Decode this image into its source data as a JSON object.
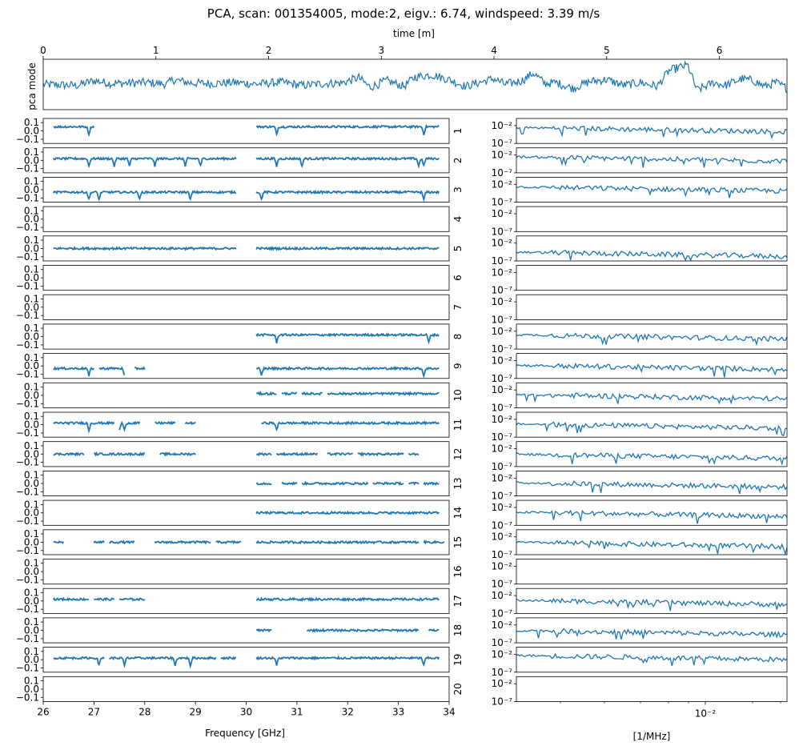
{
  "title": "PCA, scan: 001354005, mode:2, eigv.: 6.74, windspeed: 3.39 m/s",
  "colors": {
    "series": "#1f77b4",
    "axes": "#000000",
    "background": "#ffffff"
  },
  "chart_data": [
    {
      "type": "line",
      "panel": "time-series",
      "xlabel": "time [m]",
      "ylabel": "pca mode",
      "xlim": [
        0,
        6.6
      ],
      "xticks": [
        0,
        1,
        2,
        3,
        4,
        5,
        6
      ],
      "x_axis_position": "top",
      "yticks": [],
      "series": [
        {
          "x": [
            0.0,
            0.3,
            0.45,
            0.6,
            0.9,
            1.1,
            1.15,
            1.3,
            1.5,
            1.7,
            1.9,
            2.1,
            2.3,
            2.5,
            2.65,
            2.8,
            2.9,
            3.05,
            3.2,
            3.3,
            3.45,
            3.6,
            3.75,
            3.9,
            4.0,
            4.1,
            4.25,
            4.35,
            4.45,
            4.55,
            4.7,
            4.85,
            5.0,
            5.15,
            5.3,
            5.45,
            5.55,
            5.65,
            5.72,
            5.8,
            5.95,
            6.05,
            6.2,
            6.3,
            6.4,
            6.5,
            6.6
          ],
          "y": [
            0.0,
            -0.05,
            0.2,
            0.05,
            0.1,
            0.02,
            0.25,
            0.08,
            0.05,
            0.1,
            0.02,
            0.12,
            -0.05,
            0.05,
            0.08,
            0.35,
            -0.15,
            0.2,
            -0.1,
            0.4,
            0.5,
            0.25,
            -0.1,
            0.15,
            0.3,
            0.0,
            0.2,
            0.6,
            0.05,
            0.1,
            -0.2,
            0.15,
            0.25,
            -0.05,
            0.1,
            -0.1,
            0.7,
            0.9,
            1.0,
            -0.3,
            0.1,
            -0.05,
            0.3,
            0.2,
            -0.1,
            0.1,
            -0.2
          ]
        }
      ]
    },
    {
      "type": "line",
      "panel": "frequency-modes",
      "xlabel": "Frequency [GHz]",
      "xlim": [
        26,
        34
      ],
      "ylim": [
        -0.15,
        0.15
      ],
      "xticks": [
        26,
        27,
        28,
        29,
        30,
        31,
        32,
        33,
        34
      ],
      "yticks": [
        0.1,
        0.0,
        -0.1
      ],
      "yticklabels": [
        "0.1",
        "0.0",
        "−0.1"
      ],
      "modes": [
        {
          "mode": "1",
          "level": 0.05,
          "segments": [
            [
              26.2,
              27.0
            ],
            [
              30.2,
              33.8
            ]
          ],
          "dips": [
            26.9,
            30.6,
            33.5
          ]
        },
        {
          "mode": "2",
          "level": 0.02,
          "segments": [
            [
              26.2,
              29.8
            ],
            [
              30.2,
              33.8
            ]
          ],
          "dips": [
            26.9,
            27.4,
            27.7,
            28.2,
            28.8,
            29.1,
            30.6,
            31.1,
            33.4,
            33.5
          ]
        },
        {
          "mode": "3",
          "level": -0.03,
          "segments": [
            [
              26.2,
              29.8
            ],
            [
              30.2,
              33.8
            ]
          ],
          "dips": [
            26.9,
            27.1,
            27.9,
            28.9,
            30.3,
            33.5
          ]
        },
        {
          "mode": "4",
          "level": 0.0,
          "segments": [],
          "dips": []
        },
        {
          "mode": "5",
          "level": 0.0,
          "segments": [
            [
              26.2,
              29.8
            ],
            [
              30.2,
              33.8
            ]
          ],
          "dips": []
        },
        {
          "mode": "6",
          "level": 0.0,
          "segments": [],
          "dips": []
        },
        {
          "mode": "7",
          "level": 0.0,
          "segments": [],
          "dips": []
        },
        {
          "mode": "8",
          "level": 0.02,
          "segments": [
            [
              30.2,
              33.8
            ]
          ],
          "dips": [
            30.6,
            33.6
          ]
        },
        {
          "mode": "9",
          "level": -0.03,
          "segments": [
            [
              26.2,
              27.0
            ],
            [
              27.1,
              27.6
            ],
            [
              27.8,
              28.0
            ],
            [
              30.2,
              33.8
            ]
          ],
          "dips": [
            26.9,
            27.6,
            30.3,
            33.5
          ]
        },
        {
          "mode": "10",
          "level": 0.02,
          "segments": [
            [
              30.2,
              30.6
            ],
            [
              30.7,
              31.0
            ],
            [
              31.1,
              31.5
            ],
            [
              31.6,
              33.8
            ]
          ],
          "dips": []
        },
        {
          "mode": "11",
          "level": 0.02,
          "segments": [
            [
              26.2,
              27.4
            ],
            [
              27.5,
              27.9
            ],
            [
              28.2,
              28.6
            ],
            [
              28.8,
              29.0
            ],
            [
              30.3,
              33.8
            ]
          ],
          "dips": [
            26.9,
            27.5,
            27.6,
            30.6
          ]
        },
        {
          "mode": "12",
          "level": 0.0,
          "segments": [
            [
              26.2,
              26.8
            ],
            [
              27.0,
              28.0
            ],
            [
              28.3,
              29.0
            ],
            [
              30.2,
              30.5
            ],
            [
              30.6,
              31.4
            ],
            [
              31.6,
              32.1
            ],
            [
              32.2,
              33.1
            ],
            [
              33.2,
              33.4
            ]
          ],
          "dips": []
        },
        {
          "mode": "13",
          "level": 0.0,
          "segments": [
            [
              30.2,
              30.5
            ],
            [
              30.7,
              31.0
            ],
            [
              31.1,
              32.4
            ],
            [
              32.5,
              33.1
            ],
            [
              33.2,
              33.4
            ],
            [
              33.5,
              33.8
            ]
          ],
          "dips": []
        },
        {
          "mode": "14",
          "level": 0.0,
          "segments": [
            [
              30.2,
              33.8
            ]
          ],
          "dips": []
        },
        {
          "mode": "15",
          "level": 0.0,
          "segments": [
            [
              26.2,
              26.4
            ],
            [
              27.0,
              27.2
            ],
            [
              27.3,
              27.8
            ],
            [
              28.2,
              29.3
            ],
            [
              29.4,
              29.9
            ],
            [
              30.2,
              33.4
            ],
            [
              33.5,
              33.9
            ]
          ],
          "dips": []
        },
        {
          "mode": "16",
          "level": 0.0,
          "segments": [],
          "dips": []
        },
        {
          "mode": "17",
          "level": 0.02,
          "segments": [
            [
              26.2,
              26.9
            ],
            [
              27.0,
              27.4
            ],
            [
              27.5,
              28.0
            ],
            [
              30.2,
              33.8
            ]
          ],
          "dips": []
        },
        {
          "mode": "18",
          "level": 0.0,
          "segments": [
            [
              30.2,
              30.5
            ],
            [
              31.2,
              33.4
            ],
            [
              33.6,
              33.8
            ]
          ],
          "dips": []
        },
        {
          "mode": "19",
          "level": 0.02,
          "segments": [
            [
              26.2,
              27.2
            ],
            [
              27.3,
              29.4
            ],
            [
              29.5,
              29.8
            ],
            [
              30.2,
              33.8
            ]
          ],
          "dips": [
            27.1,
            27.6,
            28.6,
            28.9,
            30.6,
            33.5
          ]
        },
        {
          "mode": "20",
          "level": 0.0,
          "segments": [],
          "dips": []
        }
      ]
    },
    {
      "type": "line",
      "panel": "mode-spectra",
      "xlabel": "[1/MHz]",
      "xscale": "log",
      "yscale": "log",
      "xticks": [
        0.01
      ],
      "xticklabels": [
        "10⁻²"
      ],
      "yticks": [
        0.01,
        1e-07
      ],
      "yticklabels": [
        "10⁻²",
        "10⁻⁷"
      ],
      "ylim": [
        1e-07,
        1.0
      ],
      "modes": [
        {
          "mode": "1",
          "has_data": true,
          "level": 0.003
        },
        {
          "mode": "2",
          "has_data": true,
          "level": 0.003
        },
        {
          "mode": "3",
          "has_data": true,
          "level": 0.002
        },
        {
          "mode": "4",
          "has_data": false
        },
        {
          "mode": "5",
          "has_data": true,
          "level": 3e-05
        },
        {
          "mode": "6",
          "has_data": false
        },
        {
          "mode": "7",
          "has_data": false
        },
        {
          "mode": "8",
          "has_data": true,
          "level": 0.001
        },
        {
          "mode": "9",
          "has_data": true,
          "level": 0.0005
        },
        {
          "mode": "10",
          "has_data": true,
          "level": 0.0005
        },
        {
          "mode": "11",
          "has_data": true,
          "level": 0.0005
        },
        {
          "mode": "12",
          "has_data": true,
          "level": 0.0003
        },
        {
          "mode": "13",
          "has_data": true,
          "level": 0.0005
        },
        {
          "mode": "14",
          "has_data": true,
          "level": 0.0005
        },
        {
          "mode": "15",
          "has_data": true,
          "level": 0.0003
        },
        {
          "mode": "16",
          "has_data": false
        },
        {
          "mode": "17",
          "has_data": true,
          "level": 0.0005
        },
        {
          "mode": "18",
          "has_data": true,
          "level": 0.0003
        },
        {
          "mode": "19",
          "has_data": true,
          "level": 0.005
        },
        {
          "mode": "20",
          "has_data": false
        }
      ]
    }
  ]
}
